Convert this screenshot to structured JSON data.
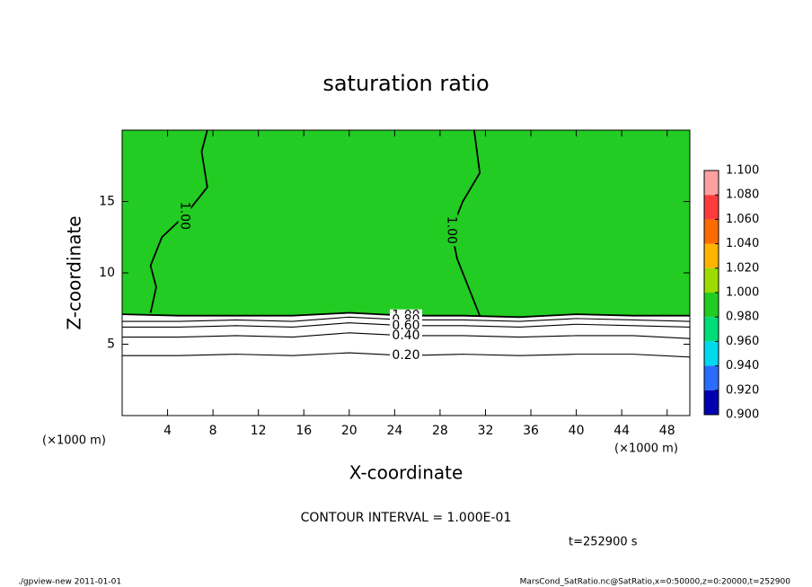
{
  "chart_data": {
    "type": "contour",
    "title": "saturation ratio",
    "x_label": "X-coordinate",
    "y_label": "Z-coordinate",
    "x_unit": "(×1000 m)",
    "y_unit": "(×1000 m)",
    "note": "CONTOUR INTERVAL = 1.000E-01",
    "time": "t=252900 s",
    "footer_left": "./gpview-new  2011-01-01",
    "footer_right": "MarsCond_SatRatio.nc@SatRatio,x=0:50000,z=0:20000,t=252900",
    "xlim": [
      0,
      50
    ],
    "ylim": [
      0,
      20
    ],
    "xticks": [
      4,
      8,
      12,
      16,
      20,
      24,
      28,
      32,
      36,
      40,
      44,
      48
    ],
    "yticks": [
      5,
      10,
      15
    ],
    "contours": [
      {
        "level": {
          "value": 1.0,
          "label": "1.00"
        },
        "x": [
          0,
          5,
          10,
          15,
          20,
          25,
          30,
          35,
          40,
          45,
          50
        ],
        "z": [
          7.1,
          7.0,
          7.0,
          7.0,
          7.2,
          7.0,
          7.0,
          6.9,
          7.1,
          7.0,
          7.0
        ]
      },
      {
        "level": {
          "value": 0.8,
          "label": "0.80"
        },
        "x": [
          0,
          5,
          10,
          15,
          20,
          25,
          30,
          35,
          40,
          45,
          50
        ],
        "z": [
          6.6,
          6.6,
          6.7,
          6.6,
          6.9,
          6.7,
          6.7,
          6.6,
          6.8,
          6.7,
          6.6
        ]
      },
      {
        "level": {
          "value": 0.6,
          "label": "0.60"
        },
        "x": [
          0,
          5,
          10,
          15,
          20,
          25,
          30,
          35,
          40,
          45,
          50
        ],
        "z": [
          6.2,
          6.2,
          6.3,
          6.2,
          6.5,
          6.3,
          6.3,
          6.2,
          6.4,
          6.3,
          6.2
        ]
      },
      {
        "level": {
          "value": 0.4,
          "label": "0.40"
        },
        "x": [
          0,
          5,
          10,
          15,
          20,
          25,
          30,
          35,
          40,
          45,
          50
        ],
        "z": [
          5.5,
          5.5,
          5.6,
          5.5,
          5.8,
          5.6,
          5.6,
          5.5,
          5.6,
          5.6,
          5.4
        ]
      },
      {
        "level": {
          "value": 0.2,
          "label": "0.20"
        },
        "x": [
          0,
          5,
          10,
          15,
          20,
          25,
          30,
          35,
          40,
          45,
          50
        ],
        "z": [
          4.2,
          4.2,
          4.3,
          4.2,
          4.4,
          4.2,
          4.3,
          4.2,
          4.3,
          4.3,
          4.1
        ]
      },
      {
        "level": {
          "value": 1.0,
          "label": "1.00"
        },
        "x": [
          2.5,
          3.0,
          2.5,
          3.5,
          5.5,
          7.5,
          7.0,
          7.5
        ],
        "z": [
          7.2,
          9.0,
          10.5,
          12.5,
          14.0,
          16.0,
          18.5,
          20.0
        ]
      },
      {
        "level": {
          "value": 1.0,
          "label": "1.00"
        },
        "x": [
          31.5,
          30.5,
          29.5,
          29.0,
          30.0,
          31.5,
          31.0
        ],
        "z": [
          7.0,
          9.0,
          11.0,
          13.0,
          15.0,
          17.0,
          20.0
        ]
      }
    ],
    "colorbar": {
      "ticks": [
        {
          "value": 1.1,
          "label": "1.100"
        },
        {
          "value": 1.08,
          "label": "1.080"
        },
        {
          "value": 1.06,
          "label": "1.060"
        },
        {
          "value": 1.04,
          "label": "1.040"
        },
        {
          "value": 1.02,
          "label": "1.020"
        },
        {
          "value": 1.0,
          "label": "1.000"
        },
        {
          "value": 0.98,
          "label": "0.980"
        },
        {
          "value": 0.96,
          "label": "0.960"
        },
        {
          "value": 0.94,
          "label": "0.940"
        },
        {
          "value": 0.92,
          "label": "0.920"
        },
        {
          "value": 0.9,
          "label": "0.900"
        }
      ],
      "colors": [
        "#ffa0a0",
        "#ff3c3c",
        "#ff6a00",
        "#ffb400",
        "#9cdc00",
        "#22cc22",
        "#00dd77",
        "#00d8ee",
        "#2a6cff",
        "#0000b0",
        "#6a00aa"
      ]
    }
  }
}
